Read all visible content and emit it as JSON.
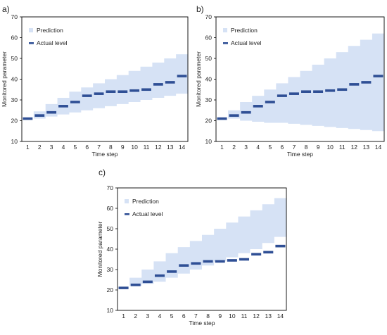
{
  "colors": {
    "band": "#d6e2f5",
    "actual": "#2f4f95",
    "axis": "#000000",
    "text": "#222222"
  },
  "chart_data": [
    {
      "panel_label": "a)",
      "type": "area",
      "xlabel": "Time step",
      "ylabel": "Monitored parameter",
      "ylim": [
        10,
        70
      ],
      "yticks": [
        10,
        20,
        30,
        40,
        50,
        60,
        70
      ],
      "x": [
        1,
        2,
        3,
        4,
        5,
        6,
        7,
        8,
        9,
        10,
        11,
        12,
        13,
        14
      ],
      "grid": false,
      "legend_position": "top-left",
      "legend": [
        "Prediction",
        "Actual level"
      ],
      "series": [
        {
          "name": "Prediction",
          "kind": "band",
          "lower": [
            21,
            21,
            22,
            23,
            24,
            25,
            26,
            27,
            28,
            29,
            30,
            31,
            32,
            33
          ],
          "upper": [
            21,
            24.5,
            28,
            31,
            34,
            36,
            38,
            40,
            42,
            44,
            46,
            48,
            50,
            52
          ]
        },
        {
          "name": "Actual level",
          "kind": "step",
          "values": [
            21,
            22.5,
            24,
            27,
            29,
            32,
            33,
            34,
            34,
            34.5,
            35,
            37.5,
            38.5,
            41.5
          ]
        }
      ]
    },
    {
      "panel_label": "b)",
      "type": "area",
      "xlabel": "Time step",
      "ylabel": "Monitored parameter",
      "ylim": [
        10,
        70
      ],
      "yticks": [
        10,
        20,
        30,
        40,
        50,
        60,
        70
      ],
      "x": [
        1,
        2,
        3,
        4,
        5,
        6,
        7,
        8,
        9,
        10,
        11,
        12,
        13,
        14
      ],
      "grid": false,
      "legend_position": "top-left",
      "legend": [
        "Prediction",
        "Actual level"
      ],
      "series": [
        {
          "name": "Prediction",
          "kind": "band",
          "lower": [
            21,
            21,
            20,
            19.5,
            19,
            19,
            18.5,
            18,
            17.5,
            17,
            16.5,
            16,
            15.5,
            15
          ],
          "upper": [
            21,
            25,
            29,
            32,
            35,
            38,
            41,
            44,
            47,
            50,
            53,
            56,
            59,
            62
          ]
        },
        {
          "name": "Actual level",
          "kind": "step",
          "values": [
            21,
            22.5,
            24,
            27,
            29,
            32,
            33,
            34,
            34,
            34.5,
            35,
            37.5,
            38.5,
            41.5
          ]
        }
      ]
    },
    {
      "panel_label": "c)",
      "type": "area",
      "xlabel": "Time step",
      "ylabel": "Monitored parameter",
      "ylim": [
        10,
        70
      ],
      "yticks": [
        10,
        20,
        30,
        40,
        50,
        60,
        70
      ],
      "x": [
        1,
        2,
        3,
        4,
        5,
        6,
        7,
        8,
        9,
        10,
        11,
        12,
        13,
        14
      ],
      "grid": false,
      "legend_position": "top-left",
      "legend": [
        "Prediction",
        "Actual level"
      ],
      "series": [
        {
          "name": "Prediction",
          "kind": "band",
          "lower": [
            21,
            22,
            23,
            24,
            26,
            28,
            30,
            32,
            34,
            36,
            38,
            40,
            43,
            46
          ],
          "upper": [
            21,
            26,
            30,
            34,
            38,
            41,
            44,
            47,
            50,
            53,
            56,
            59,
            62,
            65
          ]
        },
        {
          "name": "Actual level",
          "kind": "step",
          "values": [
            21,
            22.5,
            24,
            27,
            29,
            32,
            33,
            34,
            34,
            34.5,
            35,
            37.5,
            38.5,
            41.5
          ]
        }
      ]
    }
  ]
}
